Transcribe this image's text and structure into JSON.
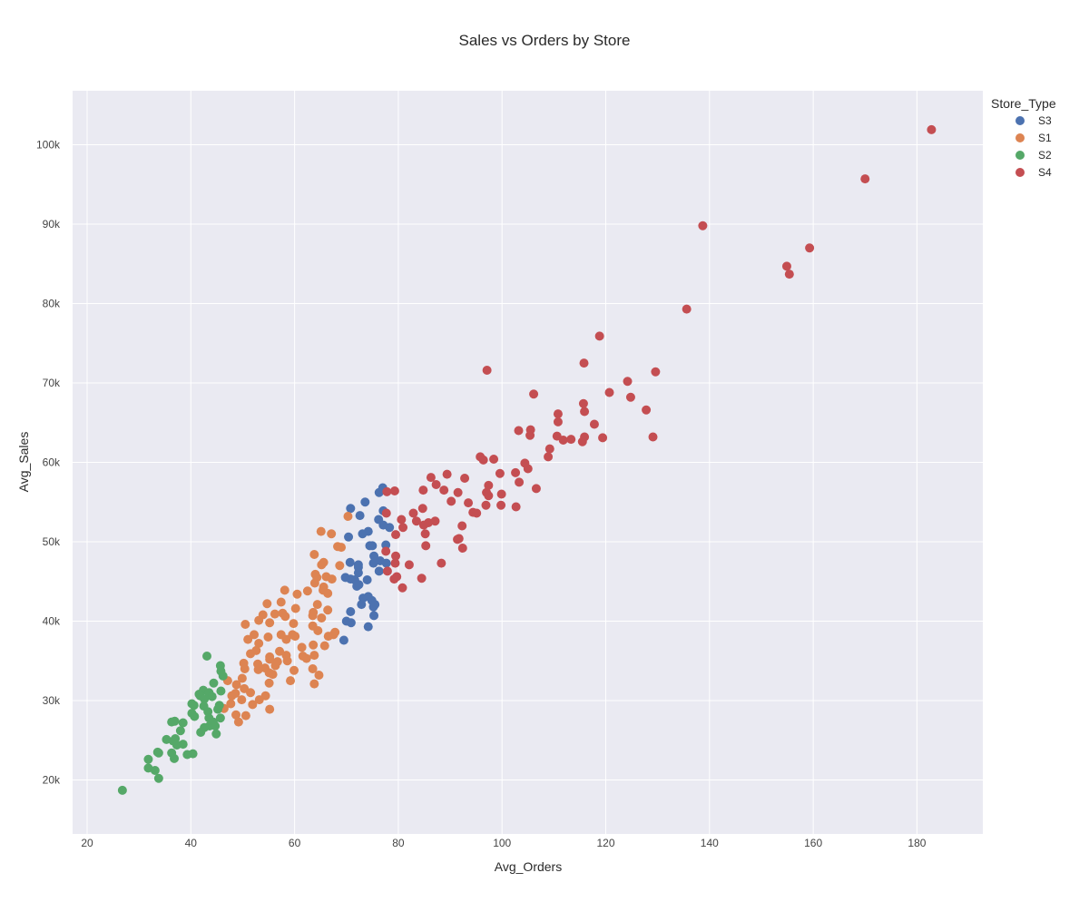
{
  "chart_data": {
    "type": "scatter",
    "title": "Sales vs Orders by Store",
    "xlabel": "Avg_Orders",
    "ylabel": "Avg_Sales",
    "xlim": [
      17.2,
      192.7
    ],
    "ylim": [
      13200,
      106800
    ],
    "x_ticks": [
      20,
      40,
      60,
      80,
      100,
      120,
      140,
      160,
      180
    ],
    "x_tick_labels": [
      "20",
      "40",
      "60",
      "80",
      "100",
      "120",
      "140",
      "160",
      "180"
    ],
    "y_ticks": [
      20000,
      30000,
      40000,
      50000,
      60000,
      70000,
      80000,
      90000,
      100000
    ],
    "y_tick_labels": [
      "20k",
      "30k",
      "40k",
      "50k",
      "60k",
      "70k",
      "80k",
      "90k",
      "100k"
    ],
    "grid": true,
    "legend": {
      "title": "Store_Type",
      "placement": "top-right"
    },
    "series": [
      {
        "name": "S3",
        "color": "#4C72B0",
        "points": [
          [
            77,
            56800
          ],
          [
            76.3,
            56200
          ],
          [
            73.6,
            55000
          ],
          [
            70.8,
            54200
          ],
          [
            77.1,
            53900
          ],
          [
            72.6,
            53300
          ],
          [
            76.2,
            52800
          ],
          [
            77.1,
            52100
          ],
          [
            78.3,
            51800
          ],
          [
            74.2,
            51300
          ],
          [
            73.1,
            51000
          ],
          [
            70.4,
            50600
          ],
          [
            75,
            49500
          ],
          [
            77.6,
            49600
          ],
          [
            74.5,
            49500
          ],
          [
            75.3,
            48200
          ],
          [
            76.5,
            47600
          ],
          [
            75.2,
            47300
          ],
          [
            70.7,
            47400
          ],
          [
            72.3,
            47100
          ],
          [
            77.7,
            47300
          ],
          [
            72.3,
            46800
          ],
          [
            76.3,
            46300
          ],
          [
            72.3,
            46100
          ],
          [
            69.8,
            45500
          ],
          [
            70.8,
            45300
          ],
          [
            71.6,
            45200
          ],
          [
            74,
            45200
          ],
          [
            72.4,
            44600
          ],
          [
            72,
            44400
          ],
          [
            74.2,
            43100
          ],
          [
            73.2,
            42900
          ],
          [
            74.9,
            42600
          ],
          [
            75.5,
            42100
          ],
          [
            75.2,
            41800
          ],
          [
            72.9,
            42100
          ],
          [
            70.8,
            41200
          ],
          [
            75.3,
            40700
          ],
          [
            70,
            40000
          ],
          [
            70.9,
            39800
          ],
          [
            74.2,
            39300
          ],
          [
            69.5,
            37600
          ]
        ]
      },
      {
        "name": "S1",
        "color": "#DD8452",
        "points": [
          [
            70.3,
            53200
          ],
          [
            65.1,
            51300
          ],
          [
            67.1,
            51000
          ],
          [
            68.3,
            49400
          ],
          [
            69,
            49300
          ],
          [
            63.8,
            48400
          ],
          [
            65.6,
            47400
          ],
          [
            65.2,
            47100
          ],
          [
            68.7,
            47000
          ],
          [
            64,
            45900
          ],
          [
            66.1,
            45600
          ],
          [
            64.3,
            45500
          ],
          [
            67.2,
            45300
          ],
          [
            63.9,
            44800
          ],
          [
            65.6,
            44300
          ],
          [
            65.5,
            43900
          ],
          [
            58.1,
            43900
          ],
          [
            62.5,
            43800
          ],
          [
            66.4,
            43500
          ],
          [
            60.5,
            43400
          ],
          [
            57.4,
            42400
          ],
          [
            54.7,
            42200
          ],
          [
            64.4,
            42100
          ],
          [
            66.4,
            41400
          ],
          [
            60.2,
            41600
          ],
          [
            63.6,
            41100
          ],
          [
            57.7,
            41000
          ],
          [
            53.9,
            40800
          ],
          [
            56.2,
            40900
          ],
          [
            63.5,
            40700
          ],
          [
            58.2,
            40600
          ],
          [
            65.2,
            40400
          ],
          [
            50.5,
            39600
          ],
          [
            53.1,
            40100
          ],
          [
            55.2,
            39800
          ],
          [
            59.8,
            39700
          ],
          [
            63.5,
            39400
          ],
          [
            64.5,
            38800
          ],
          [
            67.8,
            38600
          ],
          [
            67.5,
            38300
          ],
          [
            66.5,
            38100
          ],
          [
            59.6,
            38300
          ],
          [
            57.4,
            38300
          ],
          [
            60.1,
            38100
          ],
          [
            52.2,
            38300
          ],
          [
            51,
            37700
          ],
          [
            54.9,
            38000
          ],
          [
            58.4,
            37700
          ],
          [
            63.6,
            37000
          ],
          [
            65.8,
            36900
          ],
          [
            61.4,
            36700
          ],
          [
            53.1,
            37200
          ],
          [
            52.6,
            36300
          ],
          [
            57.1,
            36200
          ],
          [
            51.5,
            35900
          ],
          [
            55.2,
            35500
          ],
          [
            55.2,
            35200
          ],
          [
            58.4,
            35700
          ],
          [
            63.8,
            35700
          ],
          [
            61.6,
            35600
          ],
          [
            62.3,
            35300
          ],
          [
            58.6,
            35000
          ],
          [
            56.7,
            34900
          ],
          [
            50.2,
            34700
          ],
          [
            52.9,
            34600
          ],
          [
            56.3,
            34400
          ],
          [
            54.3,
            34100
          ],
          [
            50.4,
            34000
          ],
          [
            63.5,
            34000
          ],
          [
            53,
            33900
          ],
          [
            59.9,
            33800
          ],
          [
            55.1,
            33500
          ],
          [
            64.7,
            33200
          ],
          [
            55.8,
            33300
          ],
          [
            49.9,
            32800
          ],
          [
            47.1,
            32500
          ],
          [
            55.1,
            32200
          ],
          [
            59.2,
            32500
          ],
          [
            63.8,
            32100
          ],
          [
            48.8,
            32000
          ],
          [
            50.3,
            31500
          ],
          [
            51.5,
            31000
          ],
          [
            48.6,
            30900
          ],
          [
            47.9,
            30600
          ],
          [
            54.4,
            30600
          ],
          [
            49.8,
            30100
          ],
          [
            53.2,
            30100
          ],
          [
            51.9,
            29500
          ],
          [
            47.7,
            29600
          ],
          [
            55.2,
            28900
          ],
          [
            46.4,
            29000
          ],
          [
            48.7,
            28200
          ],
          [
            50.6,
            28100
          ],
          [
            49.2,
            27300
          ]
        ]
      },
      {
        "name": "S2",
        "color": "#55A868",
        "points": [
          [
            43.1,
            35600
          ],
          [
            45.7,
            34400
          ],
          [
            45.8,
            33700
          ],
          [
            46.2,
            33100
          ],
          [
            44.4,
            32200
          ],
          [
            42.4,
            31300
          ],
          [
            43.5,
            31000
          ],
          [
            45.8,
            31200
          ],
          [
            41.6,
            30800
          ],
          [
            44.1,
            30500
          ],
          [
            41.8,
            30600
          ],
          [
            42.6,
            30200
          ],
          [
            40.2,
            29600
          ],
          [
            40.6,
            29400
          ],
          [
            42.5,
            29300
          ],
          [
            45.5,
            29400
          ],
          [
            45.2,
            28900
          ],
          [
            43.3,
            28600
          ],
          [
            40.2,
            28400
          ],
          [
            40.7,
            28000
          ],
          [
            43.5,
            27800
          ],
          [
            45.7,
            27800
          ],
          [
            44.3,
            27300
          ],
          [
            38.5,
            27200
          ],
          [
            36.3,
            27300
          ],
          [
            36.9,
            27400
          ],
          [
            43.6,
            26800
          ],
          [
            44.7,
            26800
          ],
          [
            42.6,
            26600
          ],
          [
            41.9,
            26000
          ],
          [
            38,
            26200
          ],
          [
            44.9,
            25800
          ],
          [
            35.3,
            25100
          ],
          [
            37,
            25200
          ],
          [
            36.6,
            24900
          ],
          [
            38.5,
            24500
          ],
          [
            37.3,
            24400
          ],
          [
            40.4,
            23300
          ],
          [
            39.3,
            23200
          ],
          [
            36.3,
            23400
          ],
          [
            33.8,
            23400
          ],
          [
            33.6,
            23500
          ],
          [
            36.8,
            22700
          ],
          [
            31.8,
            22600
          ],
          [
            31.8,
            21500
          ],
          [
            33.1,
            21200
          ],
          [
            33.8,
            20200
          ],
          [
            26.8,
            18700
          ]
        ]
      },
      {
        "name": "S4",
        "color": "#C44E52",
        "points": [
          [
            182.8,
            101900
          ],
          [
            170,
            95700
          ],
          [
            138.7,
            89800
          ],
          [
            159.3,
            87000
          ],
          [
            154.9,
            84700
          ],
          [
            155.4,
            83700
          ],
          [
            135.6,
            79300
          ],
          [
            118.8,
            75900
          ],
          [
            115.8,
            72500
          ],
          [
            97.1,
            71600
          ],
          [
            129.6,
            71400
          ],
          [
            124.2,
            70200
          ],
          [
            120.7,
            68800
          ],
          [
            106.1,
            68600
          ],
          [
            124.8,
            68200
          ],
          [
            115.7,
            67400
          ],
          [
            127.8,
            66600
          ],
          [
            115.9,
            66400
          ],
          [
            110.8,
            66100
          ],
          [
            117.8,
            64800
          ],
          [
            110.8,
            65100
          ],
          [
            105.5,
            64100
          ],
          [
            103.2,
            64000
          ],
          [
            105.4,
            63400
          ],
          [
            110.6,
            63300
          ],
          [
            115.9,
            63200
          ],
          [
            119.4,
            63100
          ],
          [
            129.1,
            63200
          ],
          [
            111.8,
            62800
          ],
          [
            113.3,
            62900
          ],
          [
            115.5,
            62600
          ],
          [
            109.2,
            61700
          ],
          [
            108.9,
            60700
          ],
          [
            95.8,
            60700
          ],
          [
            98.4,
            60400
          ],
          [
            96.4,
            60300
          ],
          [
            104.4,
            59900
          ],
          [
            105,
            59200
          ],
          [
            99.6,
            58600
          ],
          [
            102.6,
            58700
          ],
          [
            92.8,
            58000
          ],
          [
            86.3,
            58100
          ],
          [
            89.4,
            58500
          ],
          [
            103.3,
            57500
          ],
          [
            87.3,
            57200
          ],
          [
            97.4,
            57100
          ],
          [
            106.6,
            56700
          ],
          [
            77.8,
            56300
          ],
          [
            79.3,
            56400
          ],
          [
            84.8,
            56500
          ],
          [
            88.8,
            56500
          ],
          [
            91.5,
            56200
          ],
          [
            97,
            56200
          ],
          [
            97.4,
            55800
          ],
          [
            99.9,
            56000
          ],
          [
            90.2,
            55100
          ],
          [
            93.5,
            54900
          ],
          [
            99.8,
            54600
          ],
          [
            96.9,
            54600
          ],
          [
            102.7,
            54400
          ],
          [
            84.7,
            54200
          ],
          [
            77.7,
            53600
          ],
          [
            82.9,
            53600
          ],
          [
            94.4,
            53700
          ],
          [
            95.1,
            53600
          ],
          [
            80.6,
            52800
          ],
          [
            83.5,
            52600
          ],
          [
            87.1,
            52600
          ],
          [
            85.8,
            52400
          ],
          [
            80.9,
            51800
          ],
          [
            92.3,
            52000
          ],
          [
            84.9,
            52100
          ],
          [
            79.5,
            50900
          ],
          [
            85.2,
            51000
          ],
          [
            91.7,
            50400
          ],
          [
            91.4,
            50300
          ],
          [
            92.4,
            49200
          ],
          [
            85.3,
            49500
          ],
          [
            77.6,
            48800
          ],
          [
            79.5,
            48200
          ],
          [
            88.3,
            47300
          ],
          [
            79.4,
            47300
          ],
          [
            82.1,
            47100
          ],
          [
            77.9,
            46300
          ],
          [
            79.7,
            45600
          ],
          [
            79.2,
            45300
          ],
          [
            84.5,
            45400
          ],
          [
            80.8,
            44200
          ]
        ]
      }
    ]
  }
}
